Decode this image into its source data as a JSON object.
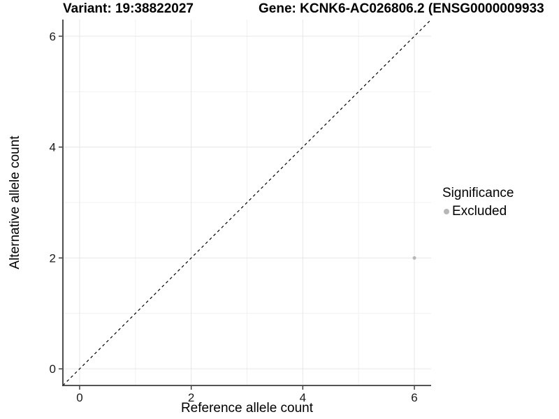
{
  "chart_data": {
    "type": "scatter",
    "title_left": "Variant: 19:38822027",
    "title_right": "Gene: KCNK6-AC026806.2 (ENSG0000009933",
    "xlabel": "Reference allele count",
    "ylabel": "Alternative allele count",
    "xlim": [
      -0.3,
      6.3
    ],
    "ylim": [
      -0.3,
      6.3
    ],
    "xticks": [
      0,
      2,
      4,
      6
    ],
    "yticks": [
      0,
      2,
      4,
      6
    ],
    "minor_xticks": [
      1,
      3,
      5
    ],
    "minor_yticks": [
      1,
      3,
      5
    ],
    "grid": "on",
    "legend_position": "right",
    "series": [
      {
        "name": "Excluded",
        "color": "#b7b7b7",
        "points": [
          {
            "x": 6,
            "y": 2
          }
        ]
      }
    ],
    "point_radius": 2.5,
    "reference_line": {
      "kind": "identity",
      "slope": 1,
      "intercept": 0,
      "style": "dashed",
      "color": "#000000"
    },
    "legend": {
      "title": "Significance",
      "items": [
        {
          "label": "Excluded",
          "color": "#b7b7b7"
        }
      ]
    }
  },
  "style": {
    "background": "#ffffff",
    "grid_major_color": "#e6e6e6",
    "grid_minor_color": "#f1f1f1",
    "axis_line_color": "#3c3c3c",
    "tick_mark_color": "#333333",
    "tick_label_color": "#1a1a1a",
    "tick_label_size": 17
  }
}
